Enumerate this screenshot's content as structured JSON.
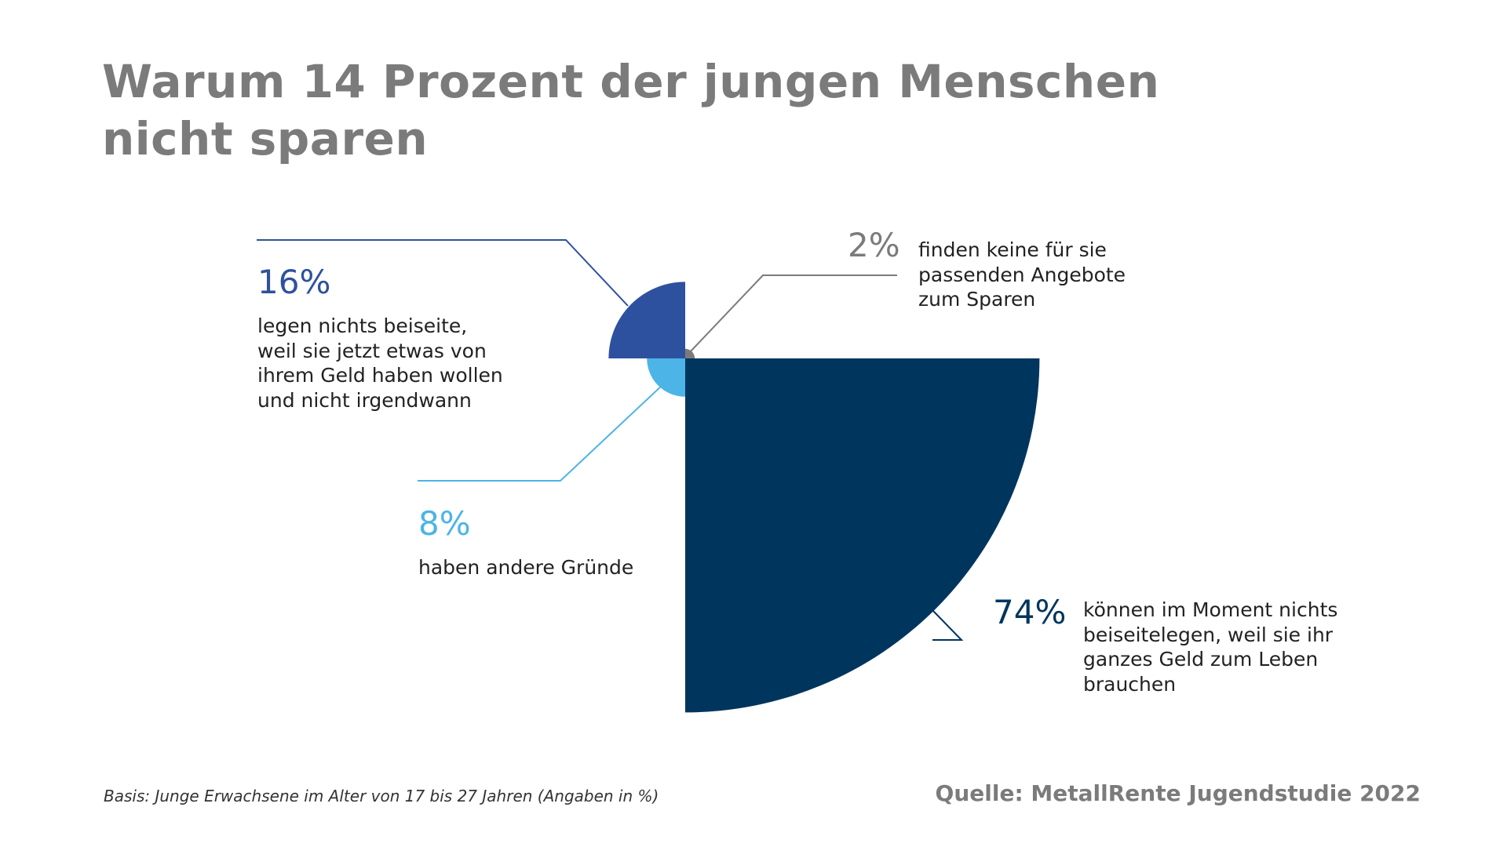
{
  "title": "Warum 14 Prozent der jungen Menschen nicht sparen",
  "basis": "Basis: Junge Erwachsene im Alter von 17 bis 27 Jahren (Angaben in %)",
  "source": "Quelle: MetallRente Jugendstudie 2022",
  "chart_data": {
    "type": "pie",
    "variant": "polar-area (radius scaled by value)",
    "title": "Warum 14 Prozent der jungen Menschen nicht sparen",
    "unit": "%",
    "slices": [
      {
        "label_pct": "74%",
        "value": 74,
        "description": "können im Moment nichts beiseitelegen, weil sie ihr ganzes Geld zum Leben brauchen",
        "color": "#00355e"
      },
      {
        "label_pct": "8%",
        "value": 8,
        "description": "haben andere Gründe",
        "color": "#4cb4e7"
      },
      {
        "label_pct": "16%",
        "value": 16,
        "description": "legen nichts beiseite, weil sie jetzt etwas von ihrem Geld haben wollen und nicht irgendwann",
        "color": "#2e519f"
      },
      {
        "label_pct": "2%",
        "value": 2,
        "description": "finden keine für sie passenden Angebote zum Sparen",
        "color": "#7b7b7b"
      }
    ]
  }
}
